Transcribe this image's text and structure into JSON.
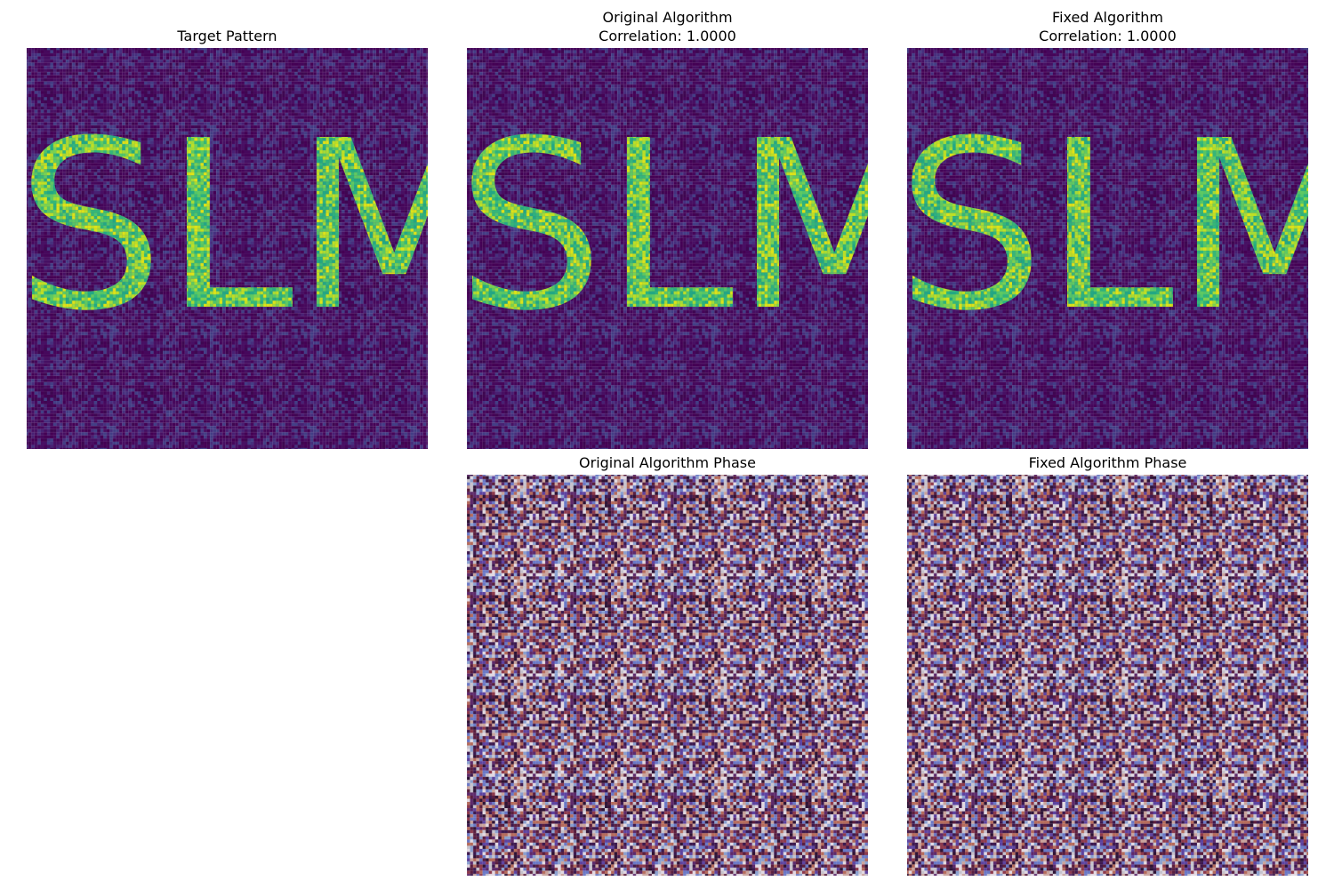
{
  "chart_data": [
    {
      "type": "image",
      "title": [
        "Target Pattern"
      ],
      "text": "SLM",
      "colormap": "viridis"
    },
    {
      "type": "image",
      "title": [
        "Original Algorithm",
        "Correlation: 1.0000"
      ],
      "text": "SLM",
      "colormap": "viridis"
    },
    {
      "type": "image",
      "title": [
        "Fixed Algorithm",
        "Correlation: 1.0000"
      ],
      "text": "SLM",
      "colormap": "viridis"
    },
    {
      "type": "image",
      "title": [
        "Original Algorithm Phase"
      ],
      "colormap": "twilight"
    },
    {
      "type": "image",
      "title": [
        "Fixed Algorithm Phase"
      ],
      "colormap": "twilight"
    }
  ]
}
